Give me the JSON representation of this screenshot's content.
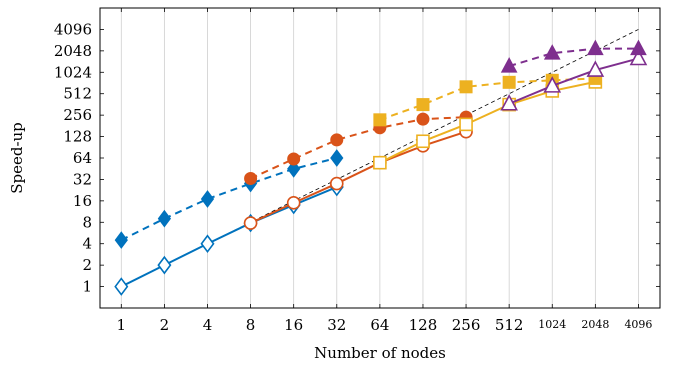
{
  "chart_data": {
    "type": "line",
    "xlabel": "Number of nodes",
    "ylabel": "Speed-up",
    "x_scale": "log2",
    "y_scale": "log2",
    "xlim": [
      0.71,
      5793
    ],
    "ylim": [
      0.5,
      8192
    ],
    "grid": "vertical",
    "x_ticks": [
      1,
      2,
      4,
      8,
      16,
      32,
      64,
      128,
      256,
      512,
      1024,
      2048,
      4096
    ],
    "x_tick_labels": [
      "1",
      "2",
      "4",
      "8",
      "16",
      "32",
      "64",
      "128",
      "256",
      "512",
      "1024",
      "2048",
      "4096"
    ],
    "y_ticks": [
      1,
      2,
      4,
      8,
      16,
      32,
      64,
      128,
      256,
      512,
      1024,
      2048,
      4096
    ],
    "y_tick_labels": [
      "1",
      "2",
      "4",
      "8",
      "16",
      "32",
      "64",
      "128",
      "256",
      "512",
      "1024",
      "2048",
      "4096"
    ],
    "ideal": {
      "x": [
        1,
        4096
      ],
      "y": [
        1,
        4096
      ],
      "color": "#000000"
    },
    "series": [
      {
        "color": "#0072BD",
        "marker": "diamond",
        "style": "solid",
        "x": [
          1,
          2,
          4,
          8,
          16,
          32
        ],
        "y": [
          1,
          2,
          4,
          7.8,
          14,
          25
        ]
      },
      {
        "color": "#0072BD",
        "marker": "diamond",
        "style": "dashed",
        "x": [
          1,
          2,
          4,
          8,
          16,
          32
        ],
        "y": [
          4.5,
          9,
          17,
          28,
          45,
          64
        ]
      },
      {
        "color": "#D95319",
        "marker": "circle",
        "style": "solid",
        "x": [
          8,
          16,
          32,
          64,
          128,
          256
        ],
        "y": [
          7.8,
          15,
          28,
          55,
          95,
          150
        ]
      },
      {
        "color": "#D95319",
        "marker": "circle",
        "style": "dashed",
        "x": [
          8,
          16,
          32,
          64,
          128,
          256
        ],
        "y": [
          33,
          62,
          115,
          170,
          225,
          240
        ]
      },
      {
        "color": "#EDB120",
        "marker": "square",
        "style": "solid",
        "x": [
          64,
          128,
          256,
          512,
          1024,
          2048
        ],
        "y": [
          55,
          110,
          190,
          360,
          560,
          750
        ]
      },
      {
        "color": "#EDB120",
        "marker": "square",
        "style": "dashed",
        "x": [
          64,
          128,
          256,
          512,
          1024,
          2048
        ],
        "y": [
          220,
          360,
          640,
          740,
          790,
          840
        ]
      },
      {
        "color": "#7E2F8E",
        "marker": "triangle",
        "style": "solid",
        "x": [
          512,
          1024,
          2048,
          4096
        ],
        "y": [
          370,
          660,
          1100,
          1600
        ]
      },
      {
        "color": "#7E2F8E",
        "marker": "triangle",
        "style": "dashed",
        "x": [
          512,
          1024,
          2048,
          4096
        ],
        "y": [
          1250,
          1900,
          2200,
          2200
        ]
      }
    ]
  }
}
